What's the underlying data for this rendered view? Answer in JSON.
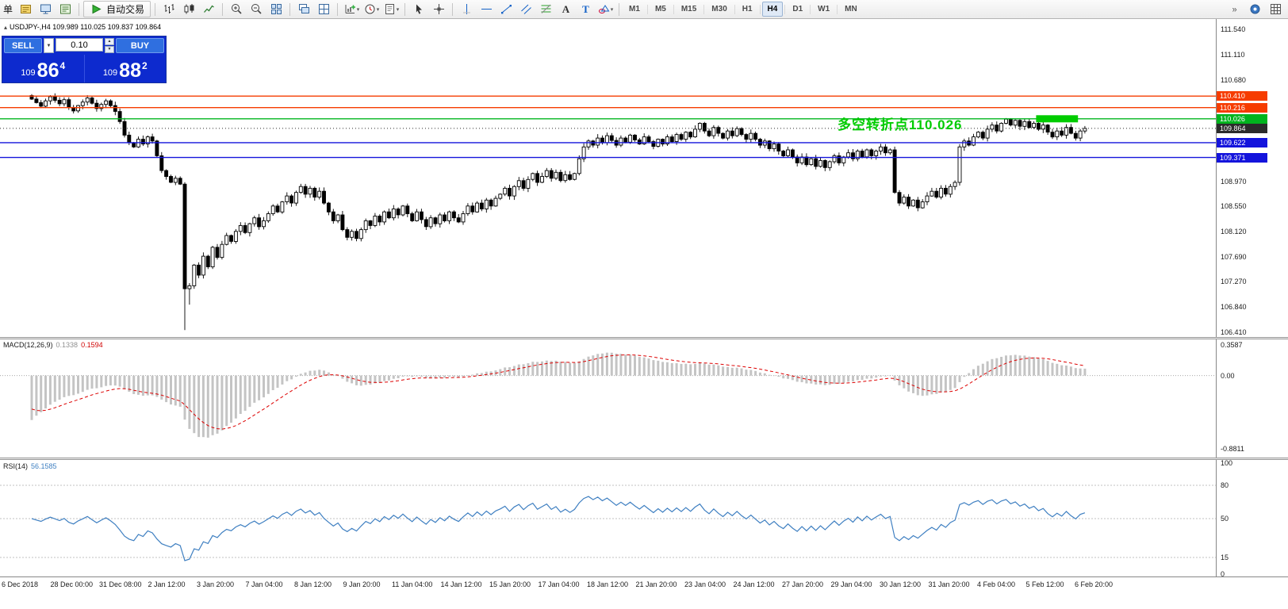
{
  "toolbar": {
    "left_text": "单",
    "groups": [
      {
        "name": "file-group",
        "items": [
          {
            "name": "new-order-button",
            "icon": "ticket"
          },
          {
            "name": "market-watch-button",
            "icon": "monitor"
          },
          {
            "name": "data-window-button",
            "icon": "list"
          }
        ]
      },
      {
        "name": "autotrading-group",
        "items": [
          {
            "name": "autotrading-button",
            "icon": "play",
            "label": "自动交易"
          }
        ]
      },
      {
        "name": "chart-type-group",
        "items": [
          {
            "name": "bar-chart-button",
            "icon": "bars"
          },
          {
            "name": "candle-chart-button",
            "icon": "candles"
          },
          {
            "name": "line-chart-button",
            "icon": "linechart"
          }
        ]
      },
      {
        "name": "zoom-group",
        "items": [
          {
            "name": "zoom-in-button",
            "icon": "zoomin"
          },
          {
            "name": "zoom-out-button",
            "icon": "zoomout"
          },
          {
            "name": "tile-windows-button",
            "icon": "tile"
          }
        ]
      },
      {
        "name": "window-group",
        "items": [
          {
            "name": "cascade-windows-button",
            "icon": "cascade"
          },
          {
            "name": "arrange-windows-button",
            "icon": "tile2"
          }
        ]
      },
      {
        "name": "chart-tools-group",
        "items": [
          {
            "name": "new-chart-button",
            "icon": "chartplus",
            "dropdown": true
          },
          {
            "name": "periodicity-button",
            "icon": "clock",
            "dropdown": true
          },
          {
            "name": "templates-button",
            "icon": "template",
            "dropdown": true
          }
        ]
      },
      {
        "name": "pointer-group",
        "items": [
          {
            "name": "cursor-button",
            "icon": "cursor"
          },
          {
            "name": "crosshair-button",
            "icon": "crosshair"
          }
        ]
      },
      {
        "name": "draw-group",
        "items": [
          {
            "name": "vertical-line-button",
            "icon": "vline"
          },
          {
            "name": "horizontal-line-button",
            "icon": "hline"
          },
          {
            "name": "trendline-button",
            "icon": "trendline"
          },
          {
            "name": "channel-button",
            "icon": "channel"
          },
          {
            "name": "fibonacci-button",
            "icon": "fibo"
          },
          {
            "name": "text-button",
            "icon": "textA"
          },
          {
            "name": "text-label-button",
            "icon": "textT"
          },
          {
            "name": "shapes-button",
            "icon": "shapes",
            "dropdown": true
          }
        ]
      }
    ],
    "timeframes": [
      "M1",
      "M5",
      "M15",
      "M30",
      "H1",
      "H4",
      "D1",
      "W1",
      "MN"
    ],
    "active_timeframe": "H4",
    "right_items": [
      {
        "name": "overflow-button",
        "icon": "chev"
      },
      {
        "name": "quotes-button",
        "icon": "circleq"
      },
      {
        "name": "layout-button",
        "icon": "grid9"
      }
    ]
  },
  "one_click": {
    "sell_label": "SELL",
    "buy_label": "BUY",
    "lot_value": "0.10",
    "sell_price": {
      "prefix": "109",
      "big": "86",
      "sup": "4"
    },
    "buy_price": {
      "prefix": "109",
      "big": "88",
      "sup": "2"
    },
    "panel_color": "#0d2ace",
    "button_color": "#2f6fe0"
  },
  "annotation": {
    "text": "多空转折点110.026",
    "color": "#00cc00"
  },
  "chart_data": {
    "type": "candlestick",
    "symbol": "USDJPY-",
    "timeframe": "H4",
    "info_line": "USDJPY-,H4  109.989 110.025 109.837 109.864",
    "ohlc": {
      "open": 109.989,
      "high": 110.025,
      "low": 109.837,
      "close": 109.864
    },
    "price_axis": {
      "ylim": [
        106.33,
        111.715
      ],
      "ticks": [
        "111.540",
        "111.110",
        "110.680",
        "108.970",
        "108.550",
        "108.120",
        "107.690",
        "107.270",
        "106.840",
        "106.410"
      ]
    },
    "levels": [
      {
        "label": "110.410",
        "value": 110.41,
        "color": "#f63c00",
        "style": "solid"
      },
      {
        "label": "110.216",
        "value": 110.216,
        "color": "#f63c00",
        "style": "solid"
      },
      {
        "label": "110.026",
        "value": 110.026,
        "color": "#00b41e",
        "style": "solid"
      },
      {
        "label": "109.864",
        "value": 109.864,
        "color": "#2b2b2b",
        "style": "dotted",
        "role": "last-price"
      },
      {
        "label": "109.622",
        "value": 109.622,
        "color": "#1414dc",
        "style": "solid"
      },
      {
        "label": "109.371",
        "value": 109.371,
        "color": "#1414dc",
        "style": "solid"
      }
    ],
    "highlight": {
      "value": 110.026,
      "color": "#00cc00",
      "from_candle": 217,
      "to_candle": 225
    },
    "candles": {
      "first_open": 110.42,
      "closes": [
        110.36,
        110.3,
        110.24,
        110.33,
        110.4,
        110.34,
        110.28,
        110.35,
        110.22,
        110.16,
        110.25,
        110.31,
        110.38,
        110.29,
        110.2,
        110.27,
        110.33,
        110.25,
        110.15,
        109.98,
        109.75,
        109.62,
        109.55,
        109.68,
        109.6,
        109.72,
        109.65,
        109.4,
        109.15,
        109.05,
        108.95,
        109.02,
        108.92,
        107.15,
        107.2,
        107.55,
        107.38,
        107.7,
        107.52,
        107.85,
        107.68,
        107.9,
        108.05,
        107.95,
        108.12,
        108.22,
        108.1,
        108.25,
        108.35,
        108.2,
        108.3,
        108.42,
        108.55,
        108.45,
        108.62,
        108.72,
        108.6,
        108.78,
        108.88,
        108.75,
        108.85,
        108.7,
        108.8,
        108.6,
        108.45,
        108.3,
        108.4,
        108.15,
        108.02,
        108.12,
        108.0,
        108.15,
        108.3,
        108.22,
        108.38,
        108.28,
        108.45,
        108.35,
        108.5,
        108.4,
        108.55,
        108.42,
        108.3,
        108.45,
        108.32,
        108.2,
        108.35,
        108.25,
        108.4,
        108.3,
        108.45,
        108.35,
        108.28,
        108.42,
        108.55,
        108.45,
        108.6,
        108.5,
        108.65,
        108.55,
        108.68,
        108.75,
        108.85,
        108.72,
        108.88,
        108.98,
        108.85,
        109.0,
        109.1,
        108.95,
        109.05,
        109.15,
        109.02,
        109.12,
        108.98,
        109.08,
        109.0,
        109.1,
        109.35,
        109.55,
        109.65,
        109.58,
        109.7,
        109.62,
        109.74,
        109.66,
        109.58,
        109.7,
        109.63,
        109.75,
        109.67,
        109.6,
        109.72,
        109.64,
        109.56,
        109.68,
        109.6,
        109.72,
        109.64,
        109.76,
        109.68,
        109.8,
        109.72,
        109.85,
        109.95,
        109.82,
        109.74,
        109.88,
        109.78,
        109.7,
        109.82,
        109.74,
        109.86,
        109.76,
        109.68,
        109.78,
        109.68,
        109.58,
        109.65,
        109.52,
        109.6,
        109.48,
        109.4,
        109.5,
        109.38,
        109.28,
        109.38,
        109.25,
        109.35,
        109.22,
        109.32,
        109.2,
        109.3,
        109.4,
        109.28,
        109.38,
        109.45,
        109.35,
        109.48,
        109.38,
        109.5,
        109.4,
        109.48,
        109.55,
        109.45,
        109.5,
        108.78,
        108.6,
        108.7,
        108.55,
        108.65,
        108.52,
        108.62,
        108.72,
        108.8,
        108.7,
        108.85,
        108.75,
        108.88,
        108.95,
        109.55,
        109.65,
        109.58,
        109.72,
        109.8,
        109.7,
        109.85,
        109.92,
        109.82,
        109.95,
        110.02,
        109.92,
        110.0,
        109.9,
        109.98,
        109.88,
        109.95,
        109.85,
        109.92,
        109.8,
        109.72,
        109.82,
        109.75,
        109.88,
        109.78,
        109.7,
        109.82,
        109.864
      ],
      "overrides": {
        "33": {
          "low": 106.45
        },
        "34": {
          "low": 106.88
        }
      }
    },
    "time_labels": [
      "6 Dec 2018",
      "28 Dec 00:00",
      "31 Dec 08:00",
      "2 Jan 12:00",
      "3 Jan 20:00",
      "7 Jan 04:00",
      "8 Jan 12:00",
      "9 Jan 20:00",
      "11 Jan 04:00",
      "14 Jan 12:00",
      "15 Jan 20:00",
      "17 Jan 04:00",
      "18 Jan 12:00",
      "21 Jan 20:00",
      "23 Jan 04:00",
      "24 Jan 12:00",
      "27 Jan 20:00",
      "29 Jan 04:00",
      "30 Jan 12:00",
      "31 Jan 20:00",
      "4 Feb 04:00",
      "5 Feb 12:00",
      "6 Feb 20:00"
    ],
    "macd": {
      "title": "MACD(12,26,9)",
      "value": "0.1338",
      "signal": "0.1594",
      "params": [
        12,
        26,
        9
      ],
      "range": [
        -0.8811,
        0.3587
      ],
      "scale_ticks": [
        "0.3587",
        "0.00",
        "-0.8811"
      ],
      "histogram_color": "#c4c4c4",
      "signal_color": "#dd0000"
    },
    "rsi": {
      "title": "RSI(14)",
      "value": "56.1585",
      "period": 14,
      "levels": [
        80,
        50,
        15
      ],
      "scale_ticks": [
        "100",
        "80",
        "50",
        "15",
        "0"
      ],
      "range": [
        0,
        100
      ],
      "line_color": "#3e7fc1"
    }
  }
}
